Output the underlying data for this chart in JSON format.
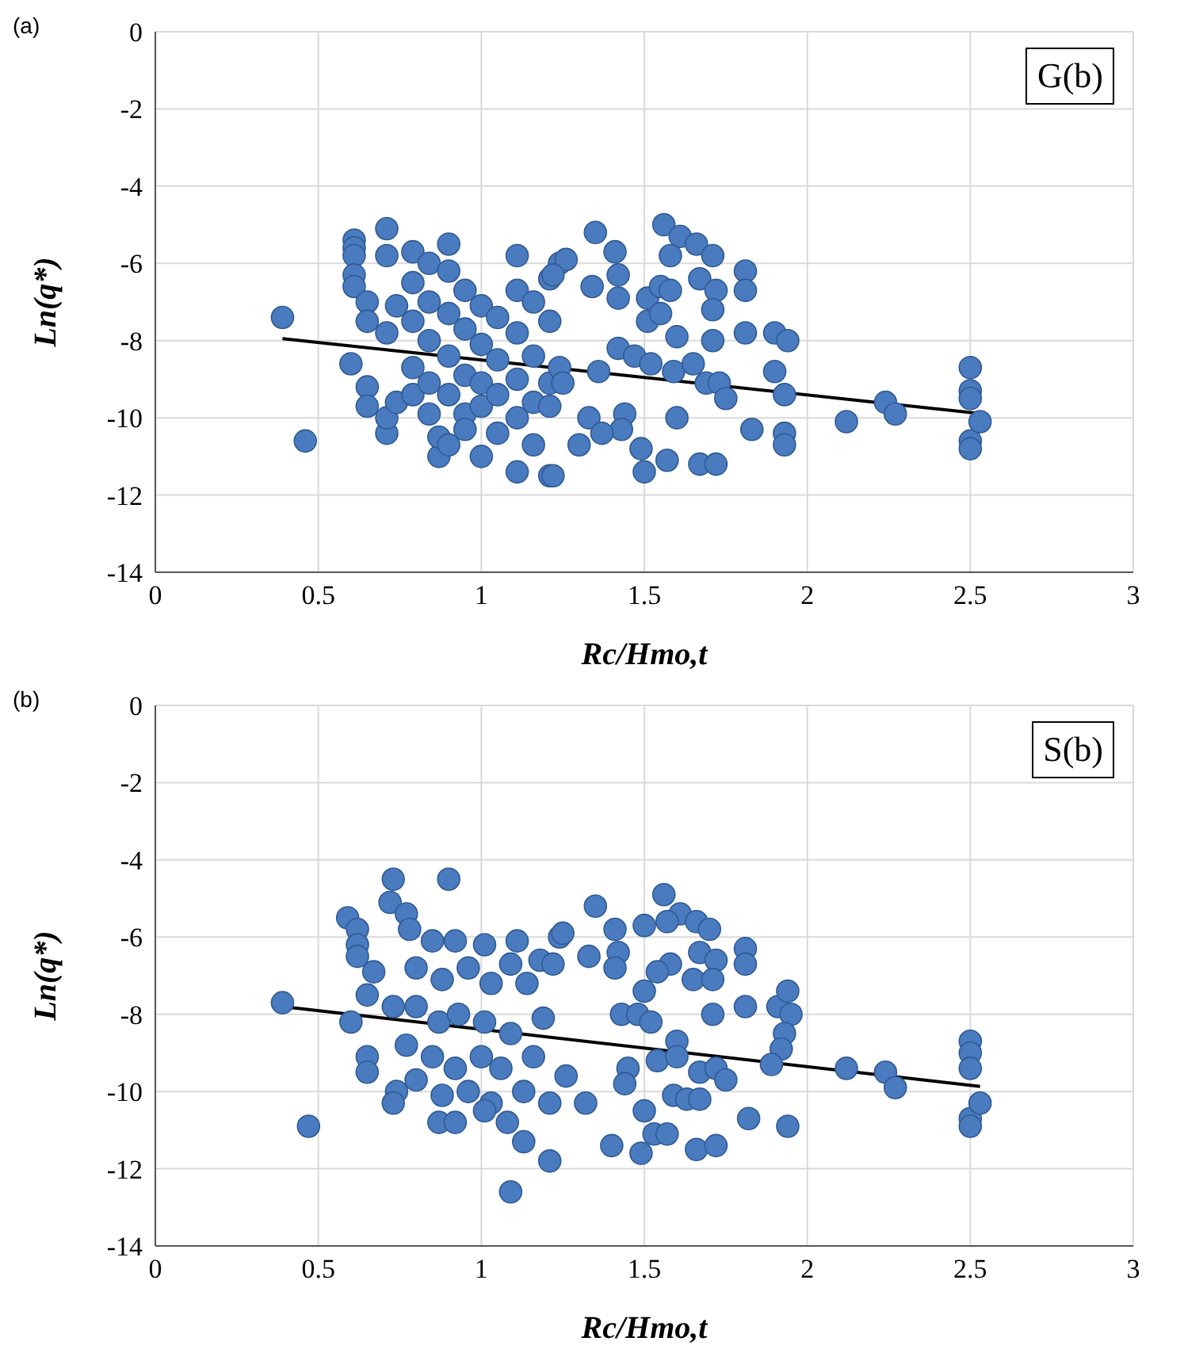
{
  "chart_data": [
    {
      "type": "scatter",
      "title": "(a)",
      "xlabel": "Rc/Hmo,t",
      "ylabel": "Ln(q*)",
      "annotations": [
        "G(b)"
      ],
      "xlim": [
        0,
        3
      ],
      "xticks": [
        0,
        0.5,
        1,
        1.5,
        2,
        2.5,
        3
      ],
      "ylim": [
        -14,
        0
      ],
      "yticks": [
        -14,
        -12,
        -10,
        -8,
        -6,
        -4,
        -2,
        0
      ],
      "grid": true,
      "series": [
        {
          "marker": "circle",
          "color": "#4a7bbf",
          "x": [
            0.39,
            0.46,
            0.61,
            0.61,
            0.61,
            0.61,
            0.61,
            0.6,
            0.65,
            0.65,
            0.65,
            0.65,
            0.71,
            0.71,
            0.71,
            0.71,
            0.71,
            0.74,
            0.74,
            0.79,
            0.79,
            0.79,
            0.79,
            0.79,
            0.84,
            0.84,
            0.84,
            0.84,
            0.84,
            0.87,
            0.87,
            0.9,
            0.9,
            0.9,
            0.9,
            0.9,
            0.9,
            0.95,
            0.95,
            0.95,
            0.95,
            0.95,
            1.0,
            1.0,
            1.0,
            1.0,
            1.0,
            1.05,
            1.05,
            1.05,
            1.05,
            1.11,
            1.11,
            1.11,
            1.11,
            1.11,
            1.11,
            1.16,
            1.16,
            1.16,
            1.16,
            1.21,
            1.21,
            1.21,
            1.21,
            1.24,
            1.24,
            1.35,
            1.41,
            1.42,
            1.42,
            1.26,
            1.22,
            1.34,
            1.56,
            1.61,
            1.66,
            1.71,
            1.58,
            1.51,
            1.55,
            1.58,
            1.51,
            1.55,
            1.67,
            1.72,
            1.71,
            1.81,
            1.81,
            1.6,
            1.71,
            1.81,
            1.9,
            1.94,
            1.9,
            1.93,
            1.42,
            1.47,
            1.52,
            1.59,
            1.65,
            1.69,
            1.73,
            1.75,
            1.44,
            1.43,
            1.49,
            1.57,
            1.5,
            1.67,
            1.72,
            1.6,
            1.83,
            1.93,
            1.93,
            2.12,
            2.24,
            2.27,
            2.5,
            2.5,
            2.5,
            2.5,
            2.5,
            2.53,
            1.22,
            1.25,
            1.33,
            1.3,
            1.37,
            1.21,
            1.36
          ],
          "values": [
            -7.4,
            -10.6,
            -5.4,
            -5.6,
            -5.8,
            -6.3,
            -6.6,
            -8.6,
            -7.0,
            -7.5,
            -9.2,
            -9.7,
            -5.1,
            -5.8,
            -7.8,
            -10.4,
            -10.0,
            -7.1,
            -9.6,
            -5.7,
            -6.5,
            -7.5,
            -8.7,
            -9.4,
            -6.0,
            -7.0,
            -8.0,
            -9.1,
            -9.9,
            -11.0,
            -10.5,
            -5.5,
            -6.2,
            -7.3,
            -8.4,
            -9.4,
            -10.7,
            -6.7,
            -7.7,
            -8.9,
            -9.9,
            -10.3,
            -7.1,
            -8.1,
            -9.1,
            -9.7,
            -11.0,
            -7.4,
            -8.5,
            -9.4,
            -10.4,
            -5.8,
            -6.7,
            -7.8,
            -9.0,
            -10.0,
            -11.4,
            -7.0,
            -8.4,
            -9.6,
            -10.7,
            -6.4,
            -7.5,
            -9.1,
            -11.5,
            -6.0,
            -8.7,
            -5.2,
            -5.7,
            -6.3,
            -6.9,
            -5.9,
            -6.3,
            -6.6,
            -5.0,
            -5.3,
            -5.5,
            -5.8,
            -5.8,
            -6.9,
            -6.6,
            -6.7,
            -7.5,
            -7.3,
            -6.4,
            -6.7,
            -7.2,
            -6.2,
            -6.7,
            -7.9,
            -8.0,
            -7.8,
            -7.8,
            -8.0,
            -8.8,
            -9.4,
            -8.2,
            -8.4,
            -8.6,
            -8.8,
            -8.6,
            -9.1,
            -9.1,
            -9.5,
            -9.9,
            -10.3,
            -10.8,
            -11.1,
            -11.4,
            -11.2,
            -11.2,
            -10.0,
            -10.3,
            -10.4,
            -10.7,
            -10.1,
            -9.6,
            -9.9,
            -8.7,
            -9.3,
            -9.5,
            -10.6,
            -10.8,
            -10.1,
            -11.5,
            -9.1,
            -10.0,
            -10.7,
            -10.4,
            -9.7,
            -8.8
          ]
        },
        {
          "type": "line",
          "color": "#000000",
          "x": [
            0.39,
            2.53
          ],
          "values": [
            -7.95,
            -9.89
          ]
        }
      ]
    },
    {
      "type": "scatter",
      "title": "(b)",
      "xlabel": "Rc/Hmo,t",
      "ylabel": "Ln(q*)",
      "annotations": [
        "S(b)"
      ],
      "xlim": [
        0,
        3
      ],
      "xticks": [
        0,
        0.5,
        1,
        1.5,
        2,
        2.5,
        3
      ],
      "ylim": [
        -14,
        0
      ],
      "yticks": [
        -14,
        -12,
        -10,
        -8,
        -6,
        -4,
        -2,
        0
      ],
      "grid": true,
      "series": [
        {
          "marker": "circle",
          "color": "#4a7bbf",
          "x": [
            0.39,
            0.47,
            1.09,
            1.21,
            0.9,
            0.73,
            0.72,
            0.77,
            0.78,
            0.59,
            0.62,
            0.62,
            0.62,
            0.67,
            0.65,
            0.6,
            0.65,
            0.65,
            0.74,
            0.73,
            0.85,
            0.92,
            1.01,
            1.09,
            1.11,
            1.18,
            1.24,
            0.8,
            0.88,
            0.96,
            1.03,
            1.14,
            0.73,
            0.8,
            0.87,
            0.93,
            1.01,
            1.09,
            1.19,
            0.77,
            0.85,
            0.92,
            1.0,
            1.06,
            1.16,
            0.8,
            0.88,
            0.96,
            1.03,
            1.13,
            1.21,
            0.87,
            0.92,
            1.01,
            1.08,
            1.13,
            1.35,
            1.25,
            1.22,
            1.33,
            1.41,
            1.42,
            1.41,
            1.56,
            1.61,
            1.66,
            1.7,
            1.5,
            1.57,
            1.81,
            1.81,
            1.67,
            1.72,
            1.58,
            1.54,
            1.65,
            1.71,
            1.5,
            1.71,
            1.81,
            1.91,
            1.94,
            1.95,
            1.93,
            1.92,
            1.89,
            1.43,
            1.48,
            1.52,
            1.6,
            1.54,
            1.6,
            1.67,
            1.72,
            1.75,
            1.59,
            1.63,
            1.67,
            1.45,
            1.44,
            1.5,
            1.53,
            1.49,
            1.57,
            1.66,
            1.72,
            1.82,
            1.94,
            2.12,
            2.24,
            2.27,
            1.4,
            1.32,
            1.26,
            2.5,
            2.5,
            2.5,
            2.5,
            2.5,
            2.53
          ],
          "values": [
            -7.7,
            -10.9,
            -12.6,
            -11.8,
            -4.5,
            -4.5,
            -5.1,
            -5.4,
            -5.8,
            -5.5,
            -5.8,
            -6.2,
            -6.5,
            -6.9,
            -7.5,
            -8.2,
            -9.1,
            -9.5,
            -10.0,
            -10.3,
            -6.1,
            -6.1,
            -6.2,
            -6.7,
            -6.1,
            -6.6,
            -6.0,
            -6.8,
            -7.1,
            -6.8,
            -7.2,
            -7.2,
            -7.8,
            -7.8,
            -8.2,
            -8.0,
            -8.2,
            -8.5,
            -8.1,
            -8.8,
            -9.1,
            -9.4,
            -9.1,
            -9.4,
            -9.1,
            -9.7,
            -10.1,
            -10.0,
            -10.3,
            -10.0,
            -10.3,
            -10.8,
            -10.8,
            -10.5,
            -10.8,
            -11.3,
            -5.2,
            -5.9,
            -6.7,
            -6.5,
            -5.8,
            -6.4,
            -6.8,
            -4.9,
            -5.4,
            -5.6,
            -5.8,
            -5.7,
            -5.6,
            -6.3,
            -6.7,
            -6.4,
            -6.6,
            -6.7,
            -6.9,
            -7.1,
            -7.1,
            -7.4,
            -8.0,
            -7.8,
            -7.8,
            -7.4,
            -8.0,
            -8.5,
            -8.9,
            -9.3,
            -8.0,
            -8.0,
            -8.2,
            -8.7,
            -9.2,
            -9.1,
            -9.5,
            -9.4,
            -9.7,
            -10.1,
            -10.2,
            -10.2,
            -9.4,
            -9.8,
            -10.5,
            -11.1,
            -11.6,
            -11.1,
            -11.5,
            -11.4,
            -10.7,
            -10.9,
            -9.4,
            -9.5,
            -9.9,
            -11.4,
            -10.3,
            -9.6,
            -8.7,
            -9.0,
            -9.4,
            -10.7,
            -10.9,
            -10.3
          ]
        },
        {
          "type": "line",
          "color": "#000000",
          "x": [
            0.39,
            2.53
          ],
          "values": [
            -7.8,
            -9.87
          ]
        }
      ]
    }
  ]
}
